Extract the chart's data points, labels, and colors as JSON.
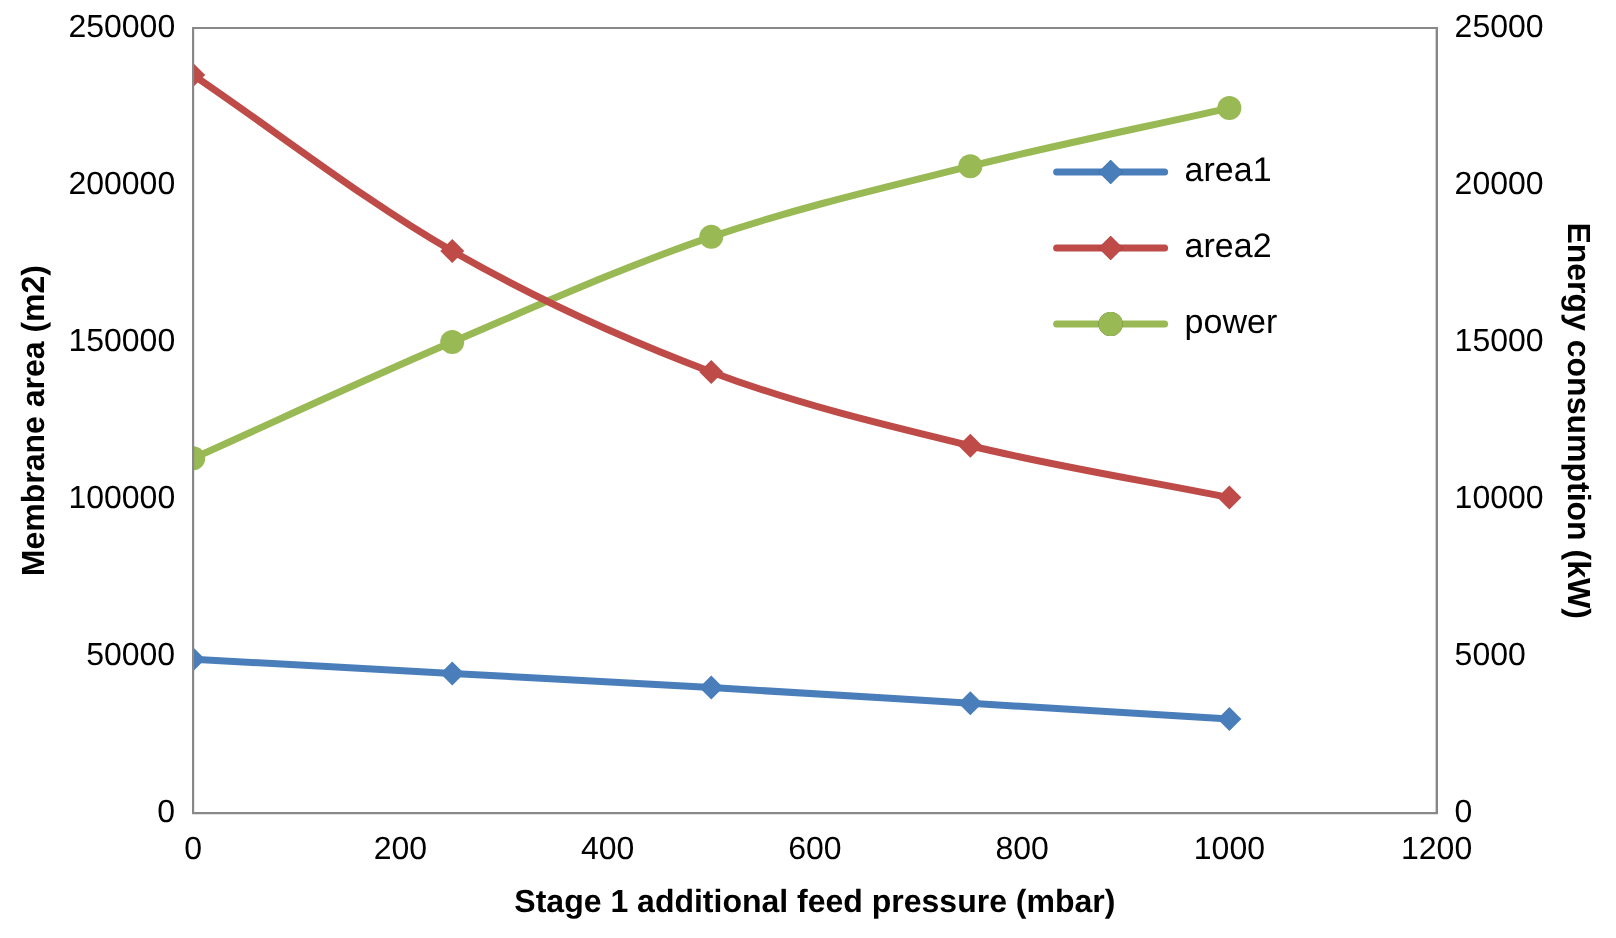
{
  "chart_data": {
    "type": "line",
    "xlabel": "Stage 1 additional feed pressure (mbar)",
    "ylabel": "Membrane area (m2)",
    "y2label": "Energy consumption (kW)",
    "x": [
      0,
      250,
      500,
      750,
      1000
    ],
    "series": [
      {
        "name": "area1",
        "color": "#4a7ebb",
        "marker": "diamond",
        "values": [
          49000,
          44500,
          40000,
          35000,
          30000
        ]
      },
      {
        "name": "area2",
        "color": "#be4b48",
        "marker": "diamond",
        "values": [
          235000,
          179000,
          140500,
          117000,
          100500
        ]
      },
      {
        "name": "power",
        "color": "#98b954",
        "marker": "circle",
        "axis": "y2",
        "values": [
          11300,
          15000,
          18350,
          20600,
          22450
        ]
      }
    ],
    "xlim": [
      0,
      1200
    ],
    "xticks": [
      0,
      200,
      400,
      600,
      800,
      1000,
      1200
    ],
    "ylim": [
      0,
      250000
    ],
    "yticks": [
      0,
      50000,
      100000,
      150000,
      200000,
      250000
    ],
    "y2lim": [
      0,
      25000
    ],
    "y2ticks": [
      0,
      5000,
      10000,
      15000,
      20000,
      25000
    ],
    "grid": false,
    "legend": "right",
    "line_style": "solid"
  }
}
